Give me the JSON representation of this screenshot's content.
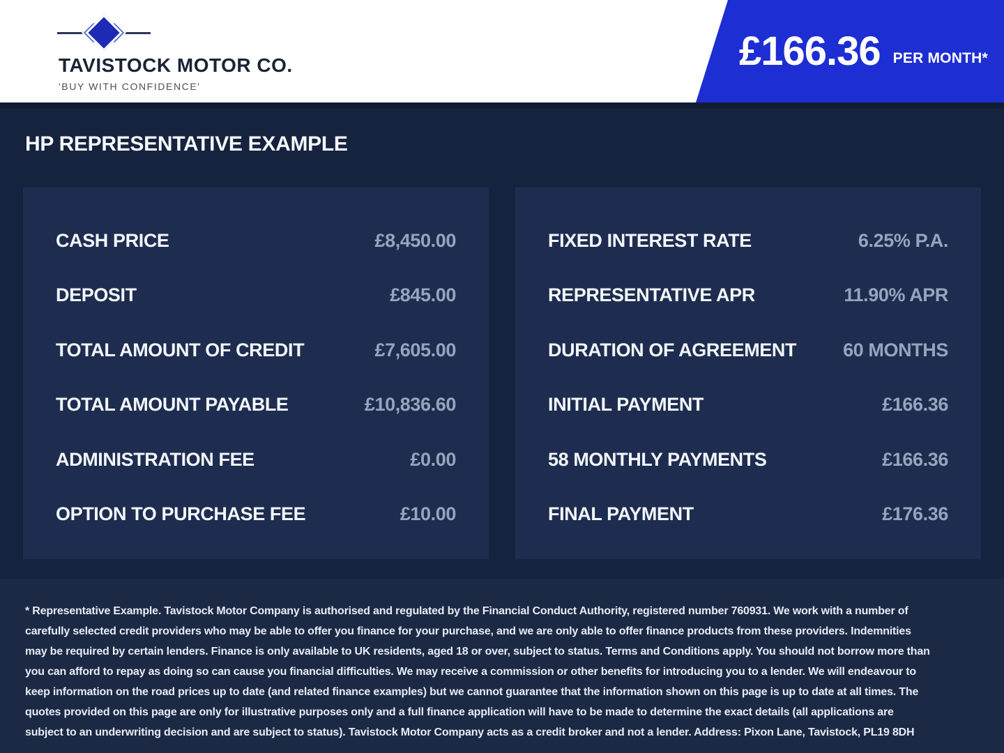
{
  "header": {
    "brand_name": "TAVISTOCK MOTOR CO.",
    "tagline": "'BUY WITH CONFIDENCE'",
    "banner": {
      "price": "£166.36",
      "suffix": "PER MONTH*"
    }
  },
  "page_title": "HP REPRESENTATIVE EXAMPLE",
  "finance_example": {
    "left_panel": {
      "rows": [
        {
          "label": "CASH PRICE",
          "value": "£8,450.00"
        },
        {
          "label": "DEPOSIT",
          "value": "£845.00"
        },
        {
          "label": "TOTAL AMOUNT OF CREDIT",
          "value": "£7,605.00"
        },
        {
          "label": "TOTAL AMOUNT PAYABLE",
          "value": "£10,836.60"
        },
        {
          "label": "ADMINISTRATION FEE",
          "value": "£0.00"
        },
        {
          "label": "OPTION TO PURCHASE FEE",
          "value": "£10.00"
        }
      ]
    },
    "right_panel": {
      "rows": [
        {
          "label": "FIXED INTEREST RATE",
          "value": "6.25% P.A."
        },
        {
          "label": "REPRESENTATIVE APR",
          "value": "11.90% APR"
        },
        {
          "label": "DURATION OF AGREEMENT",
          "value": "60 MONTHS"
        },
        {
          "label": "INITIAL PAYMENT",
          "value": "£166.36"
        },
        {
          "label": "58 MONTHLY PAYMENTS",
          "value": "£166.36"
        },
        {
          "label": "FINAL PAYMENT",
          "value": "£176.36"
        }
      ]
    }
  },
  "disclaimer": "* Representative Example. Tavistock Motor Company is authorised and regulated by the Financial Conduct Authority, registered number 760931. We work with a number of carefully selected credit providers who may be able to offer you finance for your purchase, and we are only able to offer finance products from these providers. Indemnities may be required by certain lenders. Finance is only available to UK residents, aged 18 or over, subject to status. Terms and Conditions apply. You should not borrow more than you can afford to repay as doing so can cause you financial difficulties. We may receive a commission or other benefits for introducing you to a lender. We will endeavour to keep information on the road prices up to date (and related finance examples) but we cannot guarantee that the information shown on this page is up to date at all times. The quotes provided on this page are only for illustrative purposes only and a full finance application will have to be made to determine the exact details (all applications are subject to an underwriting decision and are subject to status). Tavistock Motor Company acts as a credit broker and not a lender. Address: Pixon Lane, Tavistock, PL19 8DH",
  "colors": {
    "banner_blue": "#1d2ed2",
    "background_navy": "#16233e",
    "panel_navy": "#1e2d4f",
    "footer_navy": "#1b2944",
    "header_shadow": "#111c33",
    "label_white": "#f3f6fb",
    "value_slate": "#97a4be",
    "logo_dark_blue": "#1c2ab5",
    "logo_light_blue": "#4a5ed0",
    "brand_navy": "#1b2336"
  }
}
